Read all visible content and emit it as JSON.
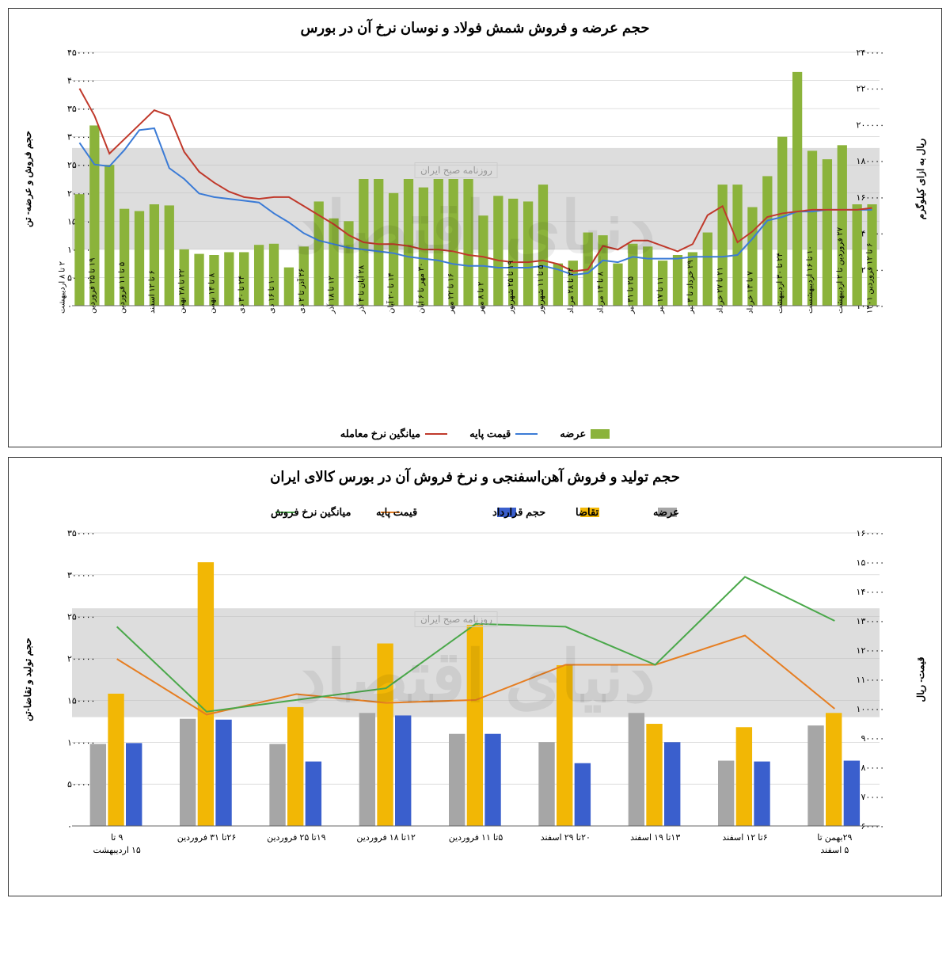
{
  "watermark_main": "دنیای اقتصاد",
  "watermark_sub": "روزنامه صبح ایران",
  "chart1": {
    "title": "حجم عرضه و فروش شمش فولاد و نوسان نرخ آن در بورس",
    "left_axis_label": "حجم فروش و عرضه- تن",
    "right_axis_label": "ریال به ازای کیلوگرم",
    "left_min": 0,
    "left_max": 450000,
    "left_step": 50000,
    "right_min": 100000,
    "right_max": 240000,
    "right_step": 20000,
    "bar_color": "#8bb33b",
    "line1_color": "#3b7bd6",
    "line2_color": "#c0392b",
    "grid_color": "#bfbfbf",
    "band_color": "#d9d9d9",
    "band_y_from": 100000,
    "band_y_to": 280000,
    "legend": [
      {
        "type": "bar",
        "label": "عرضه",
        "color": "#8bb33b"
      },
      {
        "type": "line",
        "label": "قیمت پایه",
        "color": "#3b7bd6"
      },
      {
        "type": "line",
        "label": "میانگین نرخ معامله",
        "color": "#c0392b"
      }
    ],
    "categories": [
      "۶ تا ۱۲ فروردین ۱۴۰۱",
      "",
      "۲۷ فروردین تا ۲ اردیبهشت",
      "",
      "۱۰ تا ۱۶ اردیبهشست",
      "",
      "۲۴ تا ۳۰ اردیبهشت",
      "",
      "۷ تا ۱۳ خرداد",
      "",
      "۲۱ تا ۲۷ خرداد",
      "",
      "۲۹ خرداد تا ۳ تیر",
      "",
      "۱۱ تا ۱۷ تیر",
      "",
      "۲۵ تا ۳۱ تیر",
      "",
      "۸ تا ۱۴ مرداد",
      "",
      "۲۲ تا ۲۸ مرداد",
      "",
      "۵ تا ۱۱ شهریور",
      "",
      "۱۹ تا ۲۵ شهریور",
      "",
      "۲ تا ۸ مهر",
      "",
      "۱۶ تا ۲۲ مهر",
      "",
      "۳۰ مهر تا ۶ آبان",
      "",
      "۱۴ تا ۲۰ آبان",
      "",
      "۲۸ آبان تا ۴ آذر",
      "",
      "۱۲ تا ۱۸ آذر",
      "",
      "۲۶ آذر تا ۲ دی",
      "",
      "۱۰ تا ۱۶ دی",
      "",
      "۲۴ تا ۳۰ دی",
      "",
      "۸ تا ۱۴ بهمن",
      "",
      "۲۲ تا ۲۸ بهمن",
      "",
      "۶ تا ۱۲ اسفند",
      "",
      "۵ تا ۱۱ فروردین",
      "",
      "۱۹ تا ۲۵ فروردین",
      "",
      "۲ تا ۸ اردیبهشت",
      ""
    ],
    "bars": [
      180000,
      180000,
      285000,
      260000,
      275000,
      415000,
      300000,
      230000,
      175000,
      215000,
      215000,
      130000,
      95000,
      90000,
      80000,
      105000,
      110000,
      75000,
      125000,
      130000,
      80000,
      75000,
      215000,
      185000,
      190000,
      195000,
      160000,
      225000,
      225000,
      225000,
      210000,
      225000,
      200000,
      225000,
      225000,
      150000,
      155000,
      185000,
      105000,
      68000,
      110000,
      108000,
      95000,
      95000,
      90000,
      92000,
      100000,
      178000,
      180000,
      168000,
      172000,
      250000,
      320000,
      198000
    ],
    "line_base": [
      153000,
      153000,
      153000,
      153000,
      152000,
      152000,
      149000,
      147000,
      137000,
      128000,
      127000,
      127000,
      127000,
      126000,
      126000,
      126000,
      127000,
      124000,
      125000,
      118000,
      117000,
      120000,
      122000,
      121000,
      121000,
      121000,
      122000,
      122000,
      123000,
      125000,
      126000,
      127000,
      129000,
      130000,
      131000,
      132000,
      134000,
      136000,
      140000,
      146000,
      151000,
      157000,
      158000,
      159000,
      160000,
      162000,
      170000,
      176000,
      198000,
      197000,
      186000,
      177000,
      178000,
      190000
    ],
    "line_deal": [
      154000,
      153000,
      153000,
      153000,
      153000,
      152000,
      151000,
      149000,
      141000,
      135000,
      155000,
      150000,
      134000,
      130000,
      133000,
      136000,
      136000,
      131000,
      133000,
      120000,
      119000,
      123000,
      125000,
      124000,
      124000,
      125000,
      127000,
      128000,
      130000,
      131000,
      131000,
      133000,
      134000,
      134000,
      135000,
      139000,
      145000,
      150000,
      155000,
      160000,
      160000,
      159000,
      160000,
      163000,
      168000,
      174000,
      185000,
      205000,
      208000,
      200000,
      192000,
      184000,
      205000,
      220000
    ]
  },
  "chart2": {
    "title": "حجم تولید و فروش آهن‌اسفنجی و نرخ فروش آن در بورس کالای ایران",
    "left_axis_label": "حجم تولید و تقاضا-تن",
    "right_axis_label": "قیمت- ریال",
    "left_min": 0,
    "left_max": 350000,
    "left_step": 50000,
    "right_min": 60000,
    "right_max": 160000,
    "right_step": 10000,
    "grid_color": "#bfbfbf",
    "band_color": "#d9d9d9",
    "band_y_from": 130000,
    "band_y_to": 260000,
    "colors": {
      "supply": "#a6a6a6",
      "demand": "#f2b705",
      "contract": "#3a5fcd",
      "base_price": "#e67e22",
      "avg_price": "#4aa84a"
    },
    "legend": [
      {
        "type": "bar",
        "label": "عرضه",
        "color": "#a6a6a6"
      },
      {
        "type": "bar",
        "label": "تقاضا",
        "color": "#f2b705"
      },
      {
        "type": "bar",
        "label": "حجم قرارداد",
        "color": "#3a5fcd"
      },
      {
        "type": "line",
        "label": "قیمت پایه",
        "color": "#e67e22"
      },
      {
        "type": "line",
        "label": "میانگین نرخ فروش",
        "color": "#4aa84a"
      }
    ],
    "categories": [
      "۲۹بهمن تا ۵ اسفند",
      "۶تا ۱۲ اسفند",
      "۱۳تا ۱۹ اسفند",
      "۲۰تا ۲۹ اسفند",
      "۵تا ۱۱ فروردین",
      "۱۲تا ۱۸ فروردین",
      "۱۹تا ۲۵ فروردین",
      "۲۶تا ۳۱ فروردین",
      "۹ تا ۱۵ اردیبهشت"
    ],
    "supply": [
      120000,
      78000,
      135000,
      100000,
      110000,
      135000,
      98000,
      128000,
      98000
    ],
    "demand": [
      135000,
      118000,
      122000,
      192000,
      240000,
      218000,
      142000,
      315000,
      158000
    ],
    "contract": [
      78000,
      77000,
      100000,
      75000,
      110000,
      132000,
      77000,
      127000,
      99000
    ],
    "base_price": [
      100000,
      125000,
      115000,
      115000,
      103000,
      102000,
      105000,
      98000,
      117000
    ],
    "avg_price": [
      130000,
      145000,
      115000,
      128000,
      129000,
      107000,
      103000,
      99000,
      128000
    ]
  }
}
